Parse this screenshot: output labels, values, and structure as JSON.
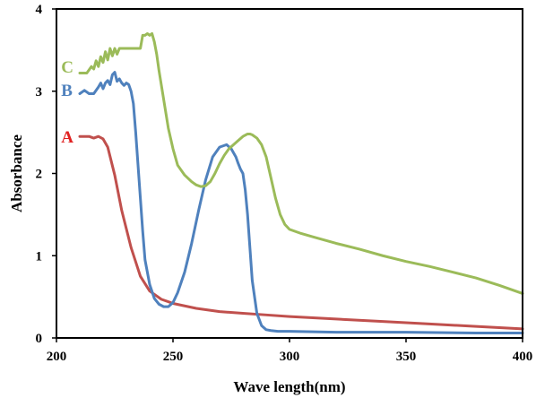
{
  "chart_data": {
    "type": "line",
    "title": "",
    "xlabel": "Wave length(nm)",
    "ylabel": "Absorbance",
    "xlim": [
      200,
      400
    ],
    "ylim": [
      0,
      4
    ],
    "xticks": [
      200,
      250,
      300,
      350,
      400
    ],
    "yticks": [
      0,
      1,
      2,
      3,
      4
    ],
    "grid": false,
    "legend": "none",
    "series": [
      {
        "name": "A",
        "color": "#c0504d",
        "x": [
          210,
          214,
          216,
          218,
          220,
          222,
          225,
          228,
          232,
          236,
          240,
          245,
          250,
          260,
          270,
          280,
          290,
          300,
          320,
          340,
          360,
          380,
          400
        ],
        "y": [
          2.45,
          2.45,
          2.43,
          2.45,
          2.42,
          2.32,
          1.98,
          1.55,
          1.1,
          0.75,
          0.57,
          0.47,
          0.42,
          0.36,
          0.32,
          0.3,
          0.28,
          0.26,
          0.23,
          0.2,
          0.17,
          0.14,
          0.11
        ]
      },
      {
        "name": "B",
        "color": "#4f81bd",
        "x": [
          210,
          212,
          214,
          216,
          218,
          219,
          220,
          221,
          222,
          223,
          224,
          225,
          226,
          227,
          228,
          229,
          230,
          231,
          232,
          233,
          234,
          235,
          236,
          237,
          238,
          240,
          242,
          244,
          246,
          248,
          250,
          252,
          255,
          258,
          261,
          264,
          267,
          270,
          273,
          275,
          277,
          278,
          279,
          280,
          281,
          282,
          283,
          284,
          286,
          288,
          290,
          292,
          295,
          300,
          320,
          350,
          380,
          400
        ],
        "y": [
          2.97,
          3.01,
          2.97,
          2.97,
          3.05,
          3.1,
          3.03,
          3.1,
          3.13,
          3.08,
          3.2,
          3.23,
          3.12,
          3.15,
          3.1,
          3.07,
          3.1,
          3.08,
          3.0,
          2.85,
          2.5,
          2.1,
          1.7,
          1.3,
          0.95,
          0.65,
          0.48,
          0.41,
          0.38,
          0.38,
          0.43,
          0.55,
          0.8,
          1.15,
          1.55,
          1.92,
          2.2,
          2.32,
          2.35,
          2.3,
          2.2,
          2.12,
          2.05,
          2.0,
          1.8,
          1.5,
          1.1,
          0.7,
          0.3,
          0.15,
          0.1,
          0.09,
          0.08,
          0.08,
          0.07,
          0.07,
          0.06,
          0.06
        ]
      },
      {
        "name": "C",
        "color": "#9bbb59",
        "x": [
          210,
          213,
          215,
          216,
          217,
          218,
          219,
          220,
          221,
          222,
          223,
          224,
          225,
          226,
          227,
          228,
          230,
          233,
          236,
          237,
          238,
          239,
          240,
          241,
          242,
          243,
          244,
          246,
          248,
          250,
          252,
          255,
          258,
          260,
          262,
          264,
          266,
          268,
          270,
          272,
          274,
          276,
          278,
          280,
          282,
          283,
          284,
          286,
          288,
          290,
          292,
          294,
          296,
          298,
          300,
          305,
          310,
          320,
          330,
          340,
          350,
          360,
          370,
          380,
          390,
          400
        ],
        "y": [
          3.22,
          3.22,
          3.3,
          3.27,
          3.37,
          3.3,
          3.42,
          3.35,
          3.48,
          3.38,
          3.52,
          3.43,
          3.52,
          3.45,
          3.52,
          3.52,
          3.52,
          3.52,
          3.52,
          3.68,
          3.68,
          3.7,
          3.68,
          3.7,
          3.6,
          3.45,
          3.25,
          2.9,
          2.55,
          2.3,
          2.1,
          1.98,
          1.9,
          1.86,
          1.84,
          1.85,
          1.9,
          2.0,
          2.12,
          2.22,
          2.3,
          2.35,
          2.4,
          2.45,
          2.48,
          2.48,
          2.47,
          2.43,
          2.35,
          2.2,
          1.95,
          1.7,
          1.5,
          1.38,
          1.32,
          1.27,
          1.23,
          1.15,
          1.08,
          1.0,
          0.93,
          0.87,
          0.8,
          0.73,
          0.64,
          0.54
        ]
      }
    ],
    "annotations": [
      {
        "text": "A",
        "x": 202,
        "y": 2.45,
        "color": "#e02020"
      },
      {
        "text": "B",
        "x": 202,
        "y": 3.02,
        "color": "#4f81bd"
      },
      {
        "text": "C",
        "x": 202,
        "y": 3.3,
        "color": "#9bbb59"
      }
    ]
  }
}
